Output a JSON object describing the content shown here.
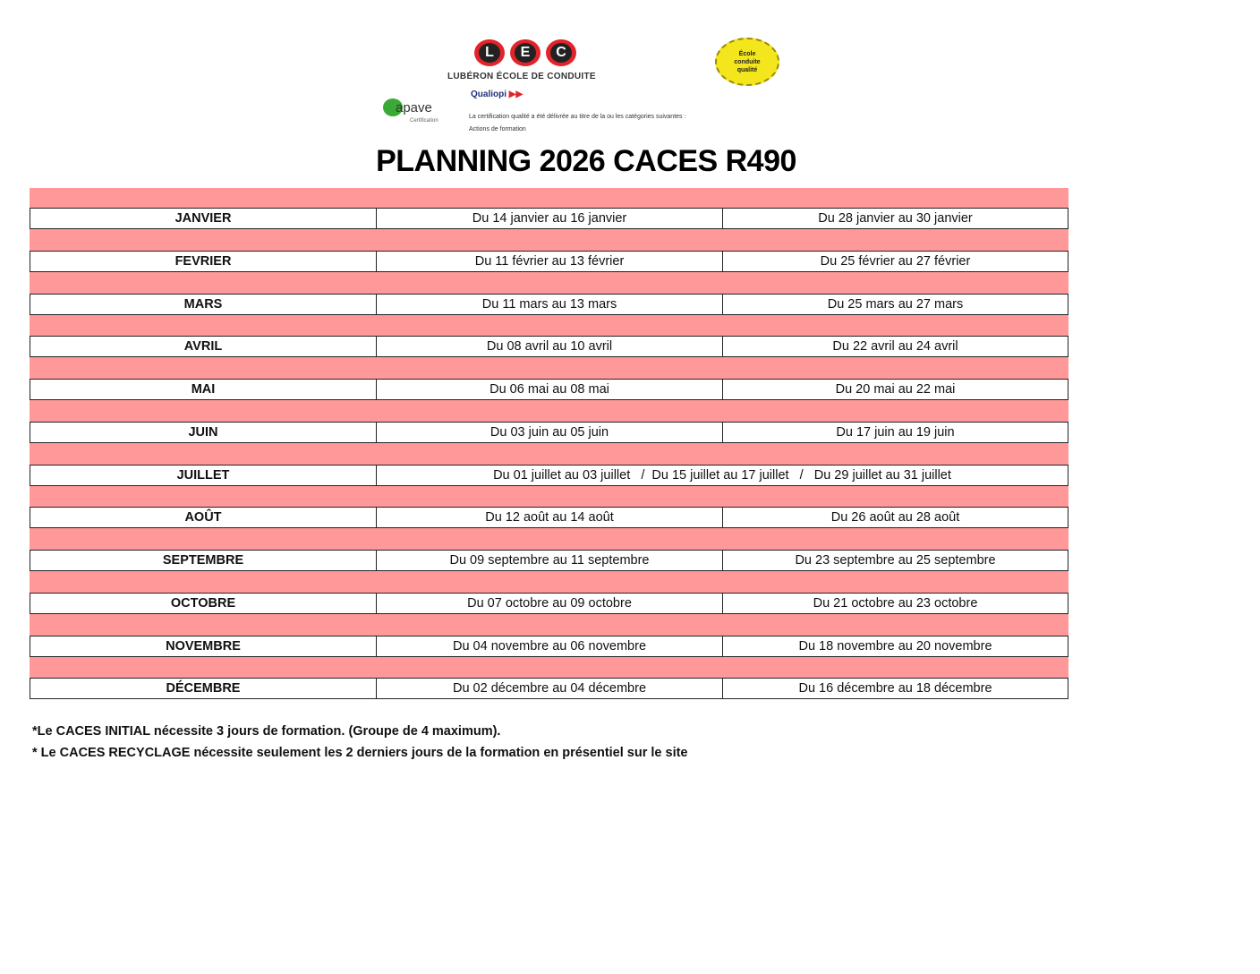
{
  "logos": {
    "lec_letters": [
      "L",
      "E",
      "C"
    ],
    "lec_name": "LUBÉRON ÉCOLE DE CONDUITE",
    "badge_text": "École conduite qualité",
    "apave": "apave",
    "apave_sub": "Certification",
    "qualiopi": "Qualiopi",
    "certification_text": "La certification qualité a été délivrée au titre de la ou les catégories suivantes :",
    "certification_category": "Actions de formation"
  },
  "title": "PLANNING 2026 CACES R490",
  "colors": {
    "band": "#ff9999"
  },
  "rows": [
    {
      "month": "JANVIER",
      "s1": "Du 14 janvier au 16 janvier",
      "s2": "Du 28 janvier au 30 janvier"
    },
    {
      "month": "FEVRIER",
      "s1": "Du 11 février au 13 février",
      "s2": "Du 25 février au 27 février"
    },
    {
      "month": "MARS",
      "s1": "Du 11 mars au 13 mars",
      "s2": "Du 25 mars au 27 mars"
    },
    {
      "month": "AVRIL",
      "s1": "Du 08 avril au 10 avril",
      "s2": "Du 22 avril au 24 avril"
    },
    {
      "month": "MAI",
      "s1": "Du 06 mai au 08 mai",
      "s2": "Du 20 mai au 22 mai"
    },
    {
      "month": "JUIN",
      "s1": "Du 03 juin au 05 juin",
      "s2": "Du 17 juin au 19 juin"
    },
    {
      "month": "JUILLET",
      "wide": "Du 01 juillet au 03 juillet   /  Du 15 juillet au 17 juillet   /   Du 29 juillet au 31 juillet"
    },
    {
      "month": "AOÛT",
      "s1": "Du 12 août au 14 août",
      "s2": "Du 26 août au 28 août"
    },
    {
      "month": "SEPTEMBRE",
      "s1": "Du 09 septembre au 11 septembre",
      "s2": "Du 23 septembre au 25 septembre"
    },
    {
      "month": "OCTOBRE",
      "s1": "Du  07 octobre au 09 octobre",
      "s2": "Du 21 octobre au 23 octobre"
    },
    {
      "month": "NOVEMBRE",
      "s1": "Du 04 novembre au 06 novembre",
      "s2": "Du 18 novembre au 20 novembre"
    },
    {
      "month": "DÉCEMBRE",
      "s1": "Du 02 décembre au 04 décembre",
      "s2": "Du 16 décembre au 18 décembre"
    }
  ],
  "notes": [
    "*Le CACES INITIAL nécessite 3 jours de formation. (Groupe de 4 maximum).",
    "* Le CACES RECYCLAGE nécessite seulement les 2 derniers jours de la formation en présentiel sur le site"
  ]
}
